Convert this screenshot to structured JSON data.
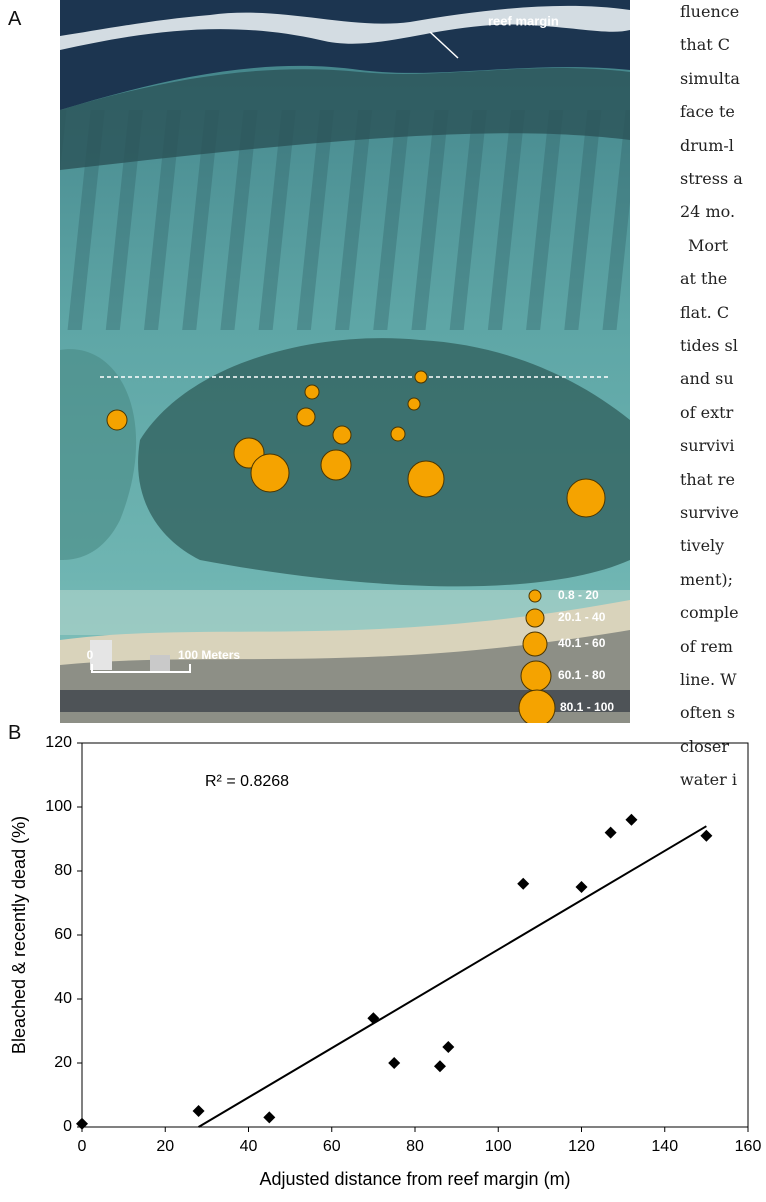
{
  "panel_a": {
    "label": "A",
    "annotation": "reef margin",
    "scale_bar": {
      "start": "0",
      "end": "100 Meters"
    },
    "legend": [
      "0.8 - 20",
      "20.1 - 40",
      "40.1 - 60",
      "60.1 - 80",
      "80.1 - 100"
    ]
  },
  "side_text": [
    "fluence",
    "that C",
    "simulta",
    "face te",
    "drum-l",
    "stress a",
    "24 mo.",
    "Mort",
    "at the",
    "flat. C",
    "tides sl",
    "and su",
    "of extr",
    "survivi",
    "that re",
    "survive",
    "tively",
    "ment);",
    "comple",
    "of rem",
    "line. W",
    "often s",
    "closer",
    "water i"
  ],
  "panel_b": {
    "label": "B"
  },
  "chart_data": {
    "type": "scatter",
    "x": [
      0,
      28,
      45,
      70,
      75,
      86,
      88,
      106,
      120,
      127,
      132,
      150
    ],
    "values": [
      1,
      5,
      3,
      34,
      20,
      19,
      25,
      76,
      75,
      92,
      96,
      91
    ],
    "color": "#000000",
    "trendline": {
      "x": [
        28,
        150
      ],
      "values": [
        0,
        94
      ]
    },
    "annotation": "R² = 0.8268",
    "xlabel": "Adjusted distance from reef margin (m)",
    "ylabel": "Bleached & recently dead (%)",
    "xlim": [
      0,
      160
    ],
    "ylim": [
      0,
      120
    ],
    "xticks": [
      0,
      20,
      40,
      60,
      80,
      100,
      120,
      140,
      160
    ],
    "yticks": [
      0,
      20,
      40,
      60,
      80,
      100,
      120
    ]
  }
}
